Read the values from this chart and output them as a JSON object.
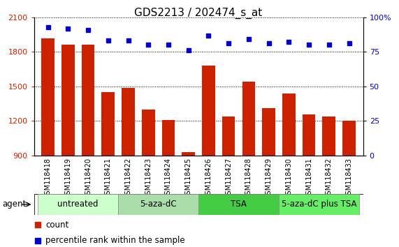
{
  "title": "GDS2213 / 202474_s_at",
  "samples": [
    "GSM118418",
    "GSM118419",
    "GSM118420",
    "GSM118421",
    "GSM118422",
    "GSM118423",
    "GSM118424",
    "GSM118425",
    "GSM118426",
    "GSM118427",
    "GSM118428",
    "GSM118429",
    "GSM118430",
    "GSM118431",
    "GSM118432",
    "GSM118433"
  ],
  "counts": [
    1920,
    1860,
    1860,
    1450,
    1490,
    1300,
    1210,
    930,
    1680,
    1240,
    1540,
    1310,
    1440,
    1260,
    1240,
    1200
  ],
  "percentiles": [
    93,
    92,
    91,
    83,
    83,
    80,
    80,
    76,
    87,
    81,
    84,
    81,
    82,
    80,
    80,
    81
  ],
  "bar_color": "#cc2200",
  "dot_color": "#0000cc",
  "ymin": 900,
  "ymax": 2100,
  "yticks": [
    900,
    1200,
    1500,
    1800,
    2100
  ],
  "y2min": 0,
  "y2max": 100,
  "y2ticks": [
    0,
    25,
    50,
    75,
    100
  ],
  "groups": [
    {
      "label": "untreated",
      "start": 0,
      "end": 3,
      "color": "#ccffcc"
    },
    {
      "label": "5-aza-dC",
      "start": 4,
      "end": 7,
      "color": "#aaddaa"
    },
    {
      "label": "TSA",
      "start": 8,
      "end": 11,
      "color": "#44cc44"
    },
    {
      "label": "5-aza-dC plus TSA",
      "start": 12,
      "end": 15,
      "color": "#66ee66"
    }
  ],
  "background_color": "#ffffff",
  "plot_bg_color": "#ffffff",
  "tick_label_color_left": "#cc2200",
  "tick_label_color_right": "#0000cc",
  "title_fontsize": 11,
  "bar_label_fontsize": 7,
  "group_label_fontsize": 8.5
}
